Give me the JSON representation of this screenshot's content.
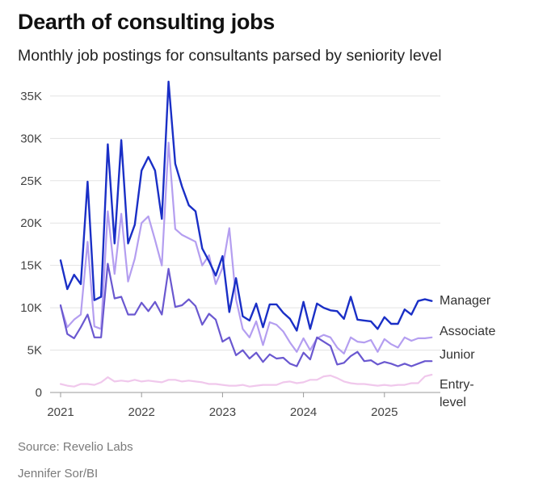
{
  "title": "Dearth of consulting jobs",
  "subtitle": "Monthly job postings for consultants parsed by seniority level",
  "source": "Source: Revelio Labs",
  "credit": "Jennifer Sor/BI",
  "chart_data": {
    "type": "line",
    "title": "Dearth of consulting jobs",
    "subtitle": "Monthly job postings for consultants parsed by seniority level",
    "xlabel": "",
    "ylabel": "",
    "ylim": [
      0,
      37000
    ],
    "y_ticks": [
      0,
      5000,
      10000,
      15000,
      20000,
      25000,
      30000,
      35000
    ],
    "y_tick_labels": [
      "0",
      "5K",
      "10K",
      "15K",
      "20K",
      "25K",
      "30K",
      "35K"
    ],
    "x_ticks": [
      0,
      12,
      24,
      36,
      48
    ],
    "x_tick_labels": [
      "2021",
      "2022",
      "2023",
      "2024",
      "2025"
    ],
    "x_start": "2021-01",
    "grid": true,
    "series": [
      {
        "name": "Manager",
        "label": "Manager",
        "color": "#1a2fc6",
        "values": [
          15600,
          12200,
          13900,
          12800,
          24900,
          10900,
          11300,
          29300,
          17600,
          29800,
          17600,
          19800,
          26200,
          27800,
          26200,
          20500,
          36700,
          27000,
          24300,
          22100,
          21400,
          17000,
          15500,
          13800,
          16100,
          9500,
          13500,
          9000,
          8500,
          10500,
          7700,
          10400,
          10400,
          9400,
          8700,
          7300,
          10700,
          7500,
          10500,
          10000,
          9700,
          9600,
          8700,
          11300,
          8600,
          8500,
          8400,
          7500,
          8900,
          8100,
          8100,
          9800,
          9200,
          10800,
          11000,
          10800
        ]
      },
      {
        "name": "Associate",
        "label": "Associate",
        "color": "#b49ef0",
        "values": [
          10200,
          7700,
          8600,
          9200,
          17800,
          7800,
          7500,
          21400,
          14000,
          21100,
          13100,
          15800,
          20000,
          20800,
          18000,
          15000,
          29500,
          19300,
          18600,
          18200,
          17800,
          15000,
          16200,
          12800,
          14700,
          19400,
          11000,
          7500,
          6500,
          8400,
          5600,
          8300,
          8000,
          7200,
          5900,
          4800,
          6400,
          5000,
          6400,
          6800,
          6500,
          5300,
          4600,
          6500,
          6000,
          5900,
          6200,
          4800,
          6300,
          5700,
          5300,
          6500,
          6100,
          6400,
          6400,
          6500
        ]
      },
      {
        "name": "Junior",
        "label": "Junior",
        "color": "#6a58d0",
        "values": [
          10300,
          6900,
          6400,
          7700,
          9200,
          6500,
          6500,
          15200,
          11100,
          11300,
          9200,
          9200,
          10600,
          9600,
          10700,
          9200,
          14600,
          10100,
          10300,
          11000,
          10200,
          8000,
          9300,
          8600,
          6000,
          6500,
          4400,
          5000,
          4000,
          4700,
          3600,
          4500,
          4000,
          4100,
          3400,
          3100,
          4700,
          3900,
          6500,
          6000,
          5500,
          3300,
          3500,
          4300,
          4800,
          3700,
          3800,
          3300,
          3600,
          3400,
          3100,
          3400,
          3100,
          3400,
          3700,
          3700
        ]
      },
      {
        "name": "Entry-level",
        "label": "Entry-\nlevel",
        "color": "#f0c8ec",
        "values": [
          1000,
          800,
          700,
          1000,
          1000,
          900,
          1200,
          1800,
          1300,
          1400,
          1300,
          1500,
          1300,
          1400,
          1300,
          1200,
          1500,
          1500,
          1300,
          1400,
          1300,
          1200,
          1000,
          1000,
          900,
          800,
          800,
          900,
          700,
          800,
          900,
          900,
          900,
          1200,
          1300,
          1100,
          1200,
          1500,
          1500,
          1900,
          2000,
          1700,
          1300,
          1100,
          1000,
          1000,
          900,
          800,
          900,
          800,
          900,
          900,
          1100,
          1100,
          1900,
          2100
        ]
      }
    ]
  }
}
